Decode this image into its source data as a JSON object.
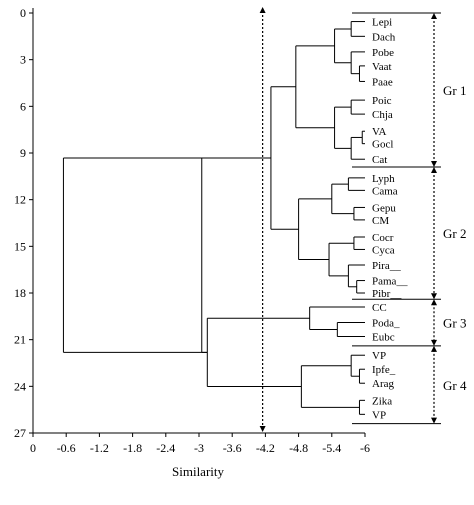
{
  "chart_data": {
    "type": "dendrogram",
    "orientation": "horizontal",
    "xlabel": "Similarity",
    "x_ticks": [
      0,
      -0.6,
      -1.2,
      -1.8,
      -2.4,
      -3,
      -3.6,
      -4.2,
      -4.8,
      -5.4,
      -6
    ],
    "x_tick_labels": [
      "0",
      "-0.6",
      "-1.2",
      "-1.8",
      "-2.4",
      "-3",
      "-3.6",
      "-4.2",
      "-4.8",
      "-5.4",
      "-6"
    ],
    "xlim": [
      0,
      -6
    ],
    "y_ticks": [
      0,
      3,
      6,
      9,
      12,
      15,
      18,
      21,
      24,
      27
    ],
    "y_tick_labels": [
      "0",
      "3",
      "6",
      "9",
      "12",
      "15",
      "18",
      "21",
      "24",
      "27"
    ],
    "ylim": [
      0,
      27
    ],
    "leaves": [
      {
        "label": "Lepi",
        "y": 0.55
      },
      {
        "label": "Dach",
        "y": 1.5
      },
      {
        "label": "Pobe",
        "y": 2.5
      },
      {
        "label": "Vaat",
        "y": 3.4
      },
      {
        "label": "Paae",
        "y": 4.4
      },
      {
        "label": "Poic",
        "y": 5.6
      },
      {
        "label": "Chja",
        "y": 6.5
      },
      {
        "label": "VA",
        "y": 7.6
      },
      {
        "label": "Gocl",
        "y": 8.4
      },
      {
        "label": "Cat",
        "y": 9.4
      },
      {
        "label": "Lyph",
        "y": 10.6
      },
      {
        "label": "Cama",
        "y": 11.4
      },
      {
        "label": "Gepu",
        "y": 12.5
      },
      {
        "label": "CM",
        "y": 13.3
      },
      {
        "label": "Cocr",
        "y": 14.4
      },
      {
        "label": "Cyca",
        "y": 15.2
      },
      {
        "label": "Pira__",
        "y": 16.2
      },
      {
        "label": "Pama__",
        "y": 17.2
      },
      {
        "label": "Pibr__",
        "y": 18.0
      },
      {
        "label": "CC",
        "y": 18.9
      },
      {
        "label": "Poda_",
        "y": 19.9
      },
      {
        "label": "Eubc",
        "y": 20.8
      },
      {
        "label": "VP",
        "y": 22.0
      },
      {
        "label": "Ipfe_",
        "y": 22.9
      },
      {
        "label": "Arag",
        "y": 23.8
      },
      {
        "label": "Zika",
        "y": 24.9
      },
      {
        "label": "VP",
        "y": 25.8
      }
    ],
    "merges": [
      {
        "children": [
          0,
          1
        ],
        "height": -5.75
      },
      {
        "children": [
          3,
          4
        ],
        "height": -5.9
      },
      {
        "children": [
          2,
          "m1"
        ],
        "height": -5.75
      },
      {
        "children": [
          "m0",
          "m2"
        ],
        "height": -5.45
      },
      {
        "children": [
          5,
          6
        ],
        "height": -5.75
      },
      {
        "children": [
          7,
          8
        ],
        "height": -5.95
      },
      {
        "children": [
          "m5",
          9
        ],
        "height": -5.75
      },
      {
        "children": [
          "m4",
          "m6"
        ],
        "height": -5.45
      },
      {
        "children": [
          "m3",
          "m7"
        ],
        "height": -4.75
      },
      {
        "children": [
          10,
          11
        ],
        "height": -5.7
      },
      {
        "children": [
          12,
          13
        ],
        "height": -5.8
      },
      {
        "children": [
          "m9",
          "m10"
        ],
        "height": -5.4
      },
      {
        "children": [
          14,
          15
        ],
        "height": -5.8
      },
      {
        "children": [
          17,
          18
        ],
        "height": -5.85
      },
      {
        "children": [
          16,
          "m13"
        ],
        "height": -5.7
      },
      {
        "children": [
          "m12",
          "m14"
        ],
        "height": -5.35
      },
      {
        "children": [
          "m11",
          "m15"
        ],
        "height": -4.8
      },
      {
        "children": [
          "m8",
          "m16"
        ],
        "height": -4.3
      },
      {
        "children": [
          20,
          21
        ],
        "height": -5.5
      },
      {
        "children": [
          19,
          "m18"
        ],
        "height": -5.0
      },
      {
        "children": [
          23,
          24
        ],
        "height": -5.9
      },
      {
        "children": [
          22,
          "m20"
        ],
        "height": -5.75
      },
      {
        "children": [
          25,
          26
        ],
        "height": -5.9
      },
      {
        "children": [
          "m21",
          "m22"
        ],
        "height": -4.85
      },
      {
        "children": [
          "m19",
          "m23"
        ],
        "height": -3.15
      },
      {
        "children": [
          "m17",
          "m24"
        ],
        "height": -3.05
      },
      {
        "children": [
          "m25"
        ],
        "height": -0.55
      }
    ],
    "root": {
      "children": [
        "m17",
        "m24"
      ],
      "height": -0.55
    },
    "cutoff_line": {
      "x": -4.15,
      "y_range": [
        0,
        27
      ]
    },
    "groups": [
      {
        "label": "Gr 1",
        "y_range": [
          0,
          9.9
        ]
      },
      {
        "label": "Gr 2",
        "y_range": [
          9.9,
          18.4
        ]
      },
      {
        "label": "Gr 3",
        "y_range": [
          18.4,
          21.4
        ]
      },
      {
        "label": "Gr 4",
        "y_range": [
          21.4,
          26.4
        ]
      }
    ],
    "group_separators": [
      0,
      9.9,
      18.4,
      21.4,
      26.4
    ],
    "colors": {
      "lines": "#000000",
      "background": "#ffffff"
    }
  }
}
